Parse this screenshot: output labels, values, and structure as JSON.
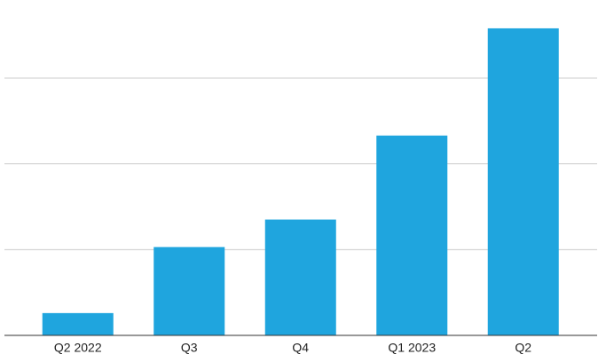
{
  "chart_data": {
    "type": "bar",
    "categories": [
      "Q2 2022",
      "Q3",
      "Q4",
      "Q1 2023",
      "Q2"
    ],
    "values": [
      0.26,
      1.03,
      1.35,
      2.33,
      3.58
    ],
    "color": "#1fa5de",
    "ylim": [
      0,
      3.9
    ],
    "yticks": [
      1,
      2,
      3
    ],
    "grid": true
  }
}
